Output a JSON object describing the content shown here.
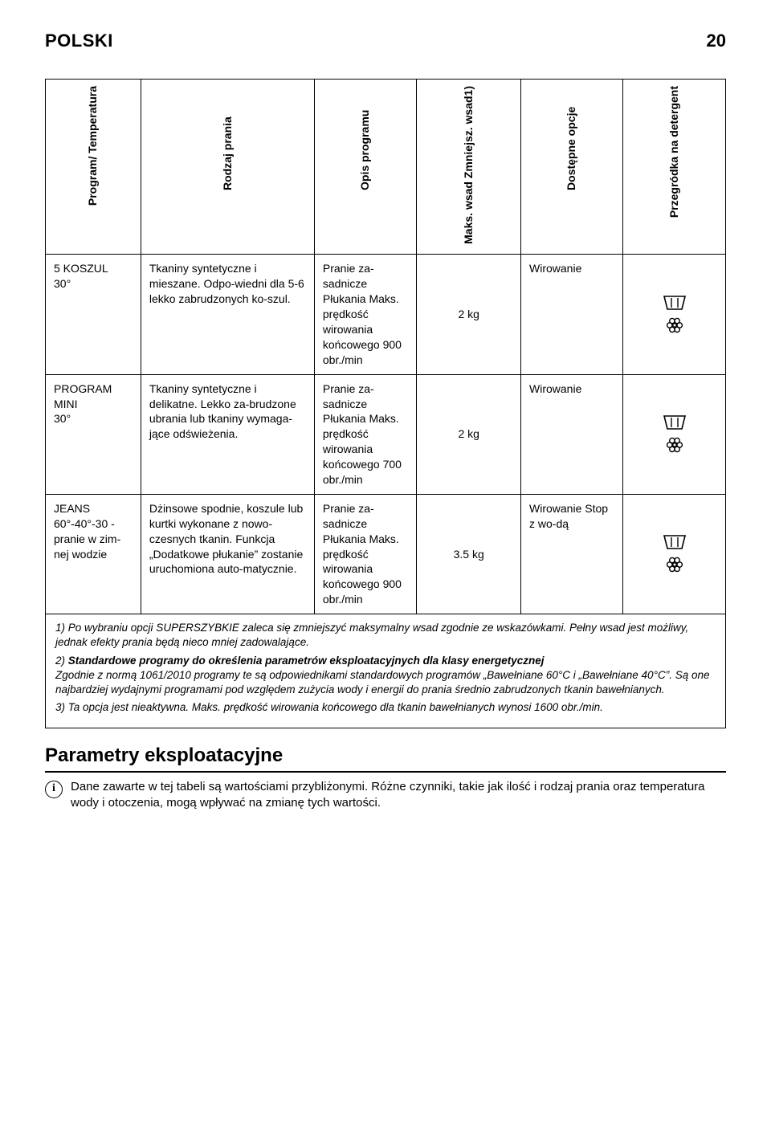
{
  "header": {
    "language": "POLSKI",
    "page_number": "20"
  },
  "table": {
    "column_headers": {
      "program": "Program/\nTemperatura",
      "type": "Rodzaj\nprania",
      "desc": "Opis\nprogramu",
      "load": "Maks. wsad\nZmniejsz. wsad1)",
      "options": "Dostępne\nopcje",
      "detergent": "Przegródka\nna detergent"
    },
    "rows": [
      {
        "program": "5 KOSZUL\n30°",
        "type": "Tkaniny syntetyczne i mieszane. Odpo-wiedni dla 5-6 lekko zabrudzonych ko-szul.",
        "desc": "Pranie za-sadnicze Płukania Maks. prędkość wirowania końcowego 900 obr./min",
        "load": "2 kg",
        "options": "Wirowanie",
        "detergent_variant": "a"
      },
      {
        "program": "PROGRAM MINI\n30°",
        "type": "Tkaniny syntetyczne i delikatne. Lekko za-brudzone ubrania lub tkaniny wymaga-jące odświeżenia.",
        "desc": "Pranie za-sadnicze Płukania Maks. prędkość wirowania końcowego 700 obr./min",
        "load": "2 kg",
        "options": "Wirowanie",
        "detergent_variant": "b"
      },
      {
        "program": "JEANS\n60°-40°-30 - pranie w zim-nej wodzie",
        "type": "Dżinsowe spodnie, koszule lub kurtki wykonane z nowo-czesnych tkanin. Funkcja „Dodatkowe płukanie” zostanie uruchomiona auto-matycznie.",
        "desc": "Pranie za-sadnicze Płukania Maks. prędkość wirowania końcowego 900 obr./min",
        "load": "3.5 kg",
        "options": "Wirowanie Stop z wo-dą",
        "detergent_variant": "b"
      }
    ]
  },
  "detergent_icons": {
    "stroke": "#000000",
    "cup": {
      "w": 30,
      "h": 20
    },
    "flower": {
      "r_outer": 10,
      "r_petal": 3.2,
      "r_center": 2.2
    }
  },
  "footnotes": {
    "items": [
      {
        "n": "1)",
        "text": "Po wybraniu opcji SUPERSZYBKIE zaleca się zmniejszyć maksymalny wsad zgodnie ze wskazówkami. Pełny wsad jest możliwy, jednak efekty prania będą nieco mniej zadowalające."
      },
      {
        "n": "2)",
        "bold": "Standardowe programy do określenia parametrów eksploatacyjnych dla klasy energetycznej",
        "text": "Zgodnie z normą 1061/2010 programy te są odpowiednikami standardowych programów „Bawełniane 60°C i „Bawełniane 40°C”. Są one najbardziej wydajnymi programami pod względem zużycia wody i energii do prania średnio zabrudzonych tkanin bawełnianych."
      },
      {
        "n": "3)",
        "text": "Ta opcja jest nieaktywna. Maks. prędkość wirowania końcowego dla tkanin bawełnianych wynosi 1600 obr./min."
      }
    ]
  },
  "section_title": "Parametry eksploatacyjne",
  "info_paragraph": "Dane zawarte w tej tabeli są wartościami przybliżonymi. Różne czynniki, takie jak ilość i rodzaj prania oraz temperatura wody i otoczenia, mogą wpływać na zmianę tych wartości."
}
